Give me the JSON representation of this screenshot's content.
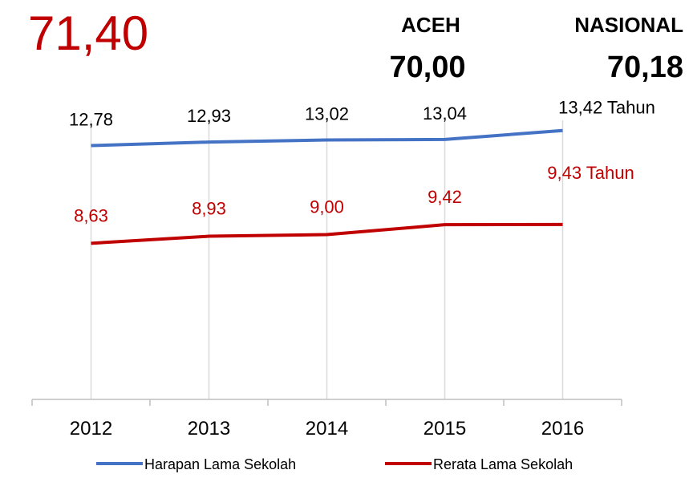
{
  "header": {
    "main_value": "71,40",
    "regions": [
      {
        "name": "ACEH",
        "value": "70,00"
      },
      {
        "name": "NASIONAL",
        "value": "70,18"
      }
    ]
  },
  "chart_data": {
    "type": "line",
    "categories": [
      "2012",
      "2013",
      "2014",
      "2015",
      "2016"
    ],
    "series": [
      {
        "name": "Harapan Lama Sekolah",
        "color": "#4472c4",
        "values": [
          12.78,
          12.93,
          13.02,
          13.04,
          13.42
        ],
        "value_labels": [
          "12,78",
          "12,93",
          "13,02",
          "13,04",
          "13,42 Tahun"
        ]
      },
      {
        "name": "Rerata Lama Sekolah",
        "color": "#c00000",
        "values": [
          8.63,
          8.93,
          9.0,
          9.42,
          9.43
        ],
        "value_labels": [
          "8,63",
          "8,93",
          "9,00",
          "9,42",
          "9,43 Tahun"
        ]
      }
    ],
    "ylim": [
      2,
      16
    ],
    "grid": true,
    "legend": "bottom"
  }
}
